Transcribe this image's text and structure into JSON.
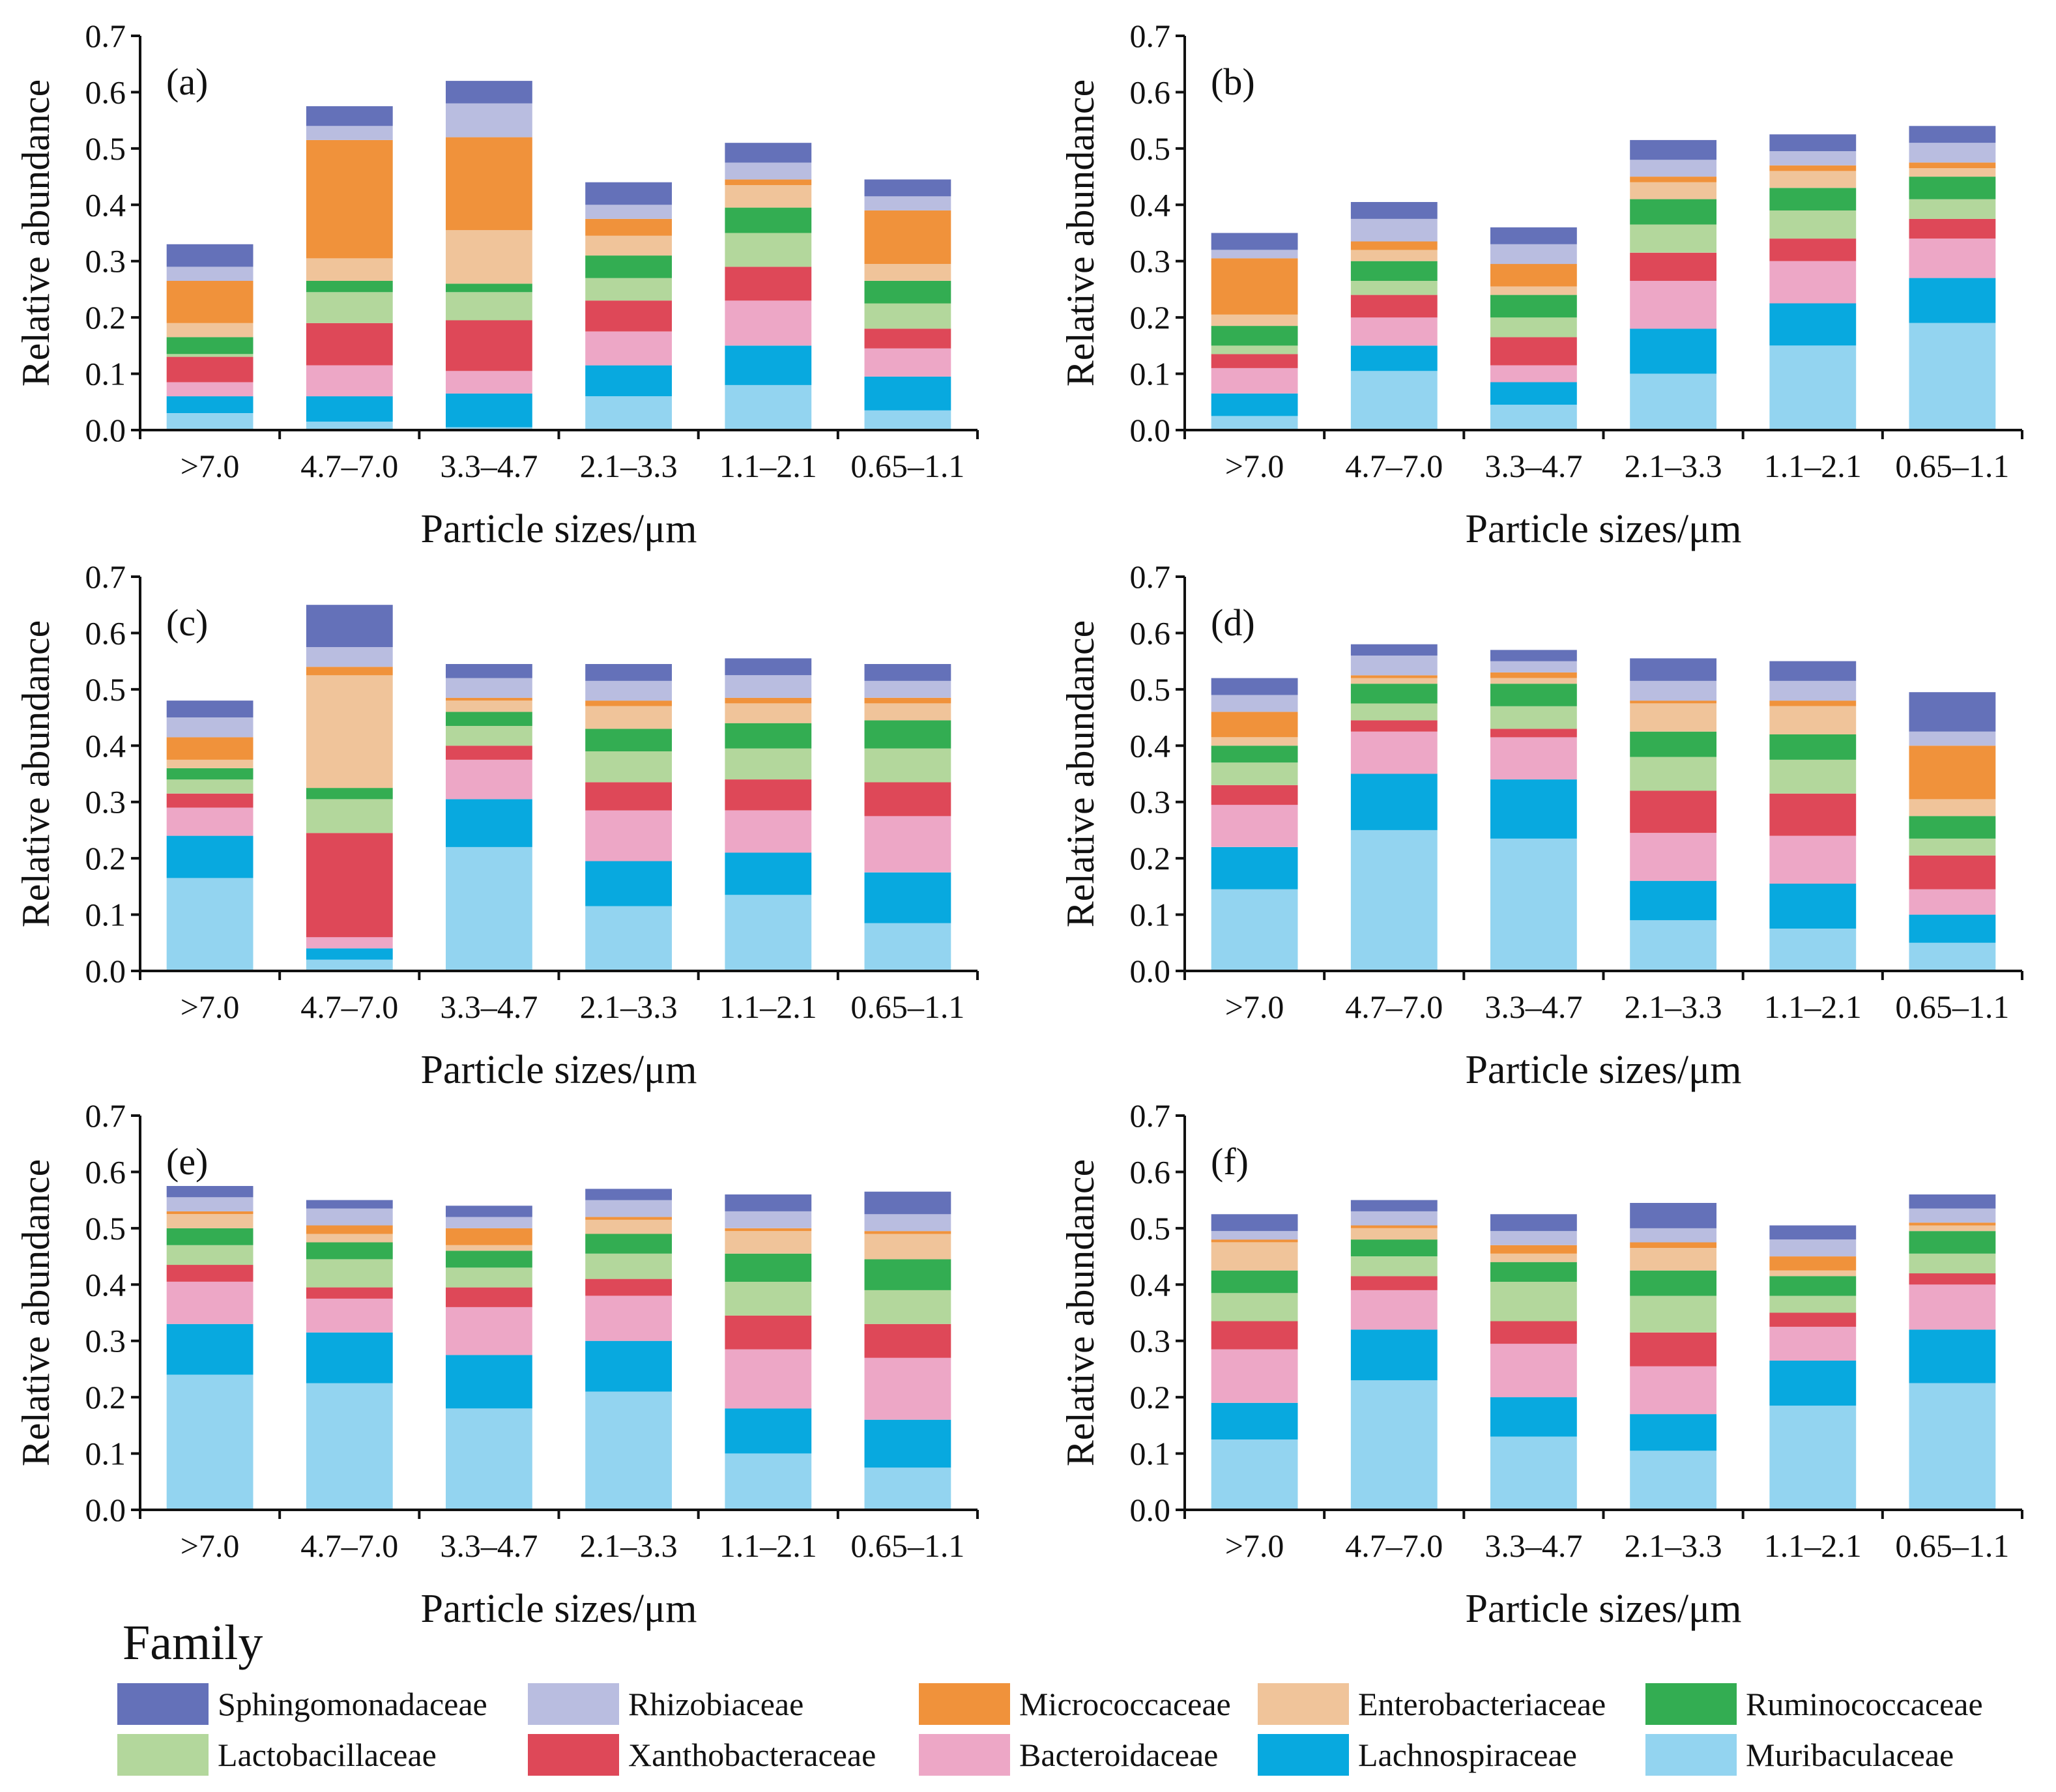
{
  "legend": {
    "title": "Family",
    "families": [
      {
        "name": "Sphingomonadaceae",
        "color": "#6471b9"
      },
      {
        "name": "Rhizobiaceae",
        "color": "#b9bde0"
      },
      {
        "name": "Micrococcaceae",
        "color": "#f0923b"
      },
      {
        "name": "Enterobacteriaceae",
        "color": "#f0c49a"
      },
      {
        "name": "Ruminococcaceae",
        "color": "#33ad52"
      },
      {
        "name": "Lactobacillaceae",
        "color": "#b3d79c"
      },
      {
        "name": "Xanthobacteraceae",
        "color": "#de4858"
      },
      {
        "name": "Bacteroidaceae",
        "color": "#eda7c6"
      },
      {
        "name": "Lachnospiraceae",
        "color": "#08a9df"
      },
      {
        "name": "Muribaculaceae",
        "color": "#93d4f0"
      }
    ]
  },
  "chart_data": [
    {
      "type": "bar",
      "stacked": true,
      "panel_label": "(a)",
      "categories": [
        ">7.0",
        "4.7–7.0",
        "3.3–4.7",
        "2.1–3.3",
        "1.1–2.1",
        "0.65–1.1"
      ],
      "xlabel": "Particle sizes/μm",
      "ylabel": "Relative abundance",
      "ylim": [
        0,
        0.7
      ],
      "yticks": [
        "0.0",
        "0.1",
        "0.2",
        "0.3",
        "0.4",
        "0.5",
        "0.6",
        "0.7"
      ],
      "series": [
        {
          "name": "Muribaculaceae",
          "values": [
            0.03,
            0.015,
            0.005,
            0.06,
            0.08,
            0.035
          ]
        },
        {
          "name": "Lachnospiraceae",
          "values": [
            0.03,
            0.045,
            0.06,
            0.055,
            0.07,
            0.06
          ]
        },
        {
          "name": "Bacteroidaceae",
          "values": [
            0.025,
            0.055,
            0.04,
            0.06,
            0.08,
            0.05
          ]
        },
        {
          "name": "Xanthobacteraceae",
          "values": [
            0.045,
            0.075,
            0.09,
            0.055,
            0.06,
            0.035
          ]
        },
        {
          "name": "Lactobacillaceae",
          "values": [
            0.005,
            0.055,
            0.05,
            0.04,
            0.06,
            0.045
          ]
        },
        {
          "name": "Ruminococcaceae",
          "values": [
            0.03,
            0.02,
            0.015,
            0.04,
            0.045,
            0.04
          ]
        },
        {
          "name": "Enterobacteriaceae",
          "values": [
            0.025,
            0.04,
            0.095,
            0.035,
            0.04,
            0.03
          ]
        },
        {
          "name": "Micrococcaceae",
          "values": [
            0.075,
            0.21,
            0.165,
            0.03,
            0.01,
            0.095
          ]
        },
        {
          "name": "Rhizobiaceae",
          "values": [
            0.025,
            0.025,
            0.06,
            0.025,
            0.03,
            0.025
          ]
        },
        {
          "name": "Sphingomonadaceae",
          "values": [
            0.04,
            0.035,
            0.04,
            0.04,
            0.035,
            0.03
          ]
        }
      ]
    },
    {
      "type": "bar",
      "stacked": true,
      "panel_label": "(b)",
      "categories": [
        ">7.0",
        "4.7–7.0",
        "3.3–4.7",
        "2.1–3.3",
        "1.1–2.1",
        "0.65–1.1"
      ],
      "xlabel": "Particle sizes/μm",
      "ylabel": "Relative abundance",
      "ylim": [
        0,
        0.7
      ],
      "yticks": [
        "0.0",
        "0.1",
        "0.2",
        "0.3",
        "0.4",
        "0.5",
        "0.6",
        "0.7"
      ],
      "series": [
        {
          "name": "Muribaculaceae",
          "values": [
            0.025,
            0.105,
            0.045,
            0.1,
            0.15,
            0.19
          ]
        },
        {
          "name": "Lachnospiraceae",
          "values": [
            0.04,
            0.045,
            0.04,
            0.08,
            0.075,
            0.08
          ]
        },
        {
          "name": "Bacteroidaceae",
          "values": [
            0.045,
            0.05,
            0.03,
            0.085,
            0.075,
            0.07
          ]
        },
        {
          "name": "Xanthobacteraceae",
          "values": [
            0.025,
            0.04,
            0.05,
            0.05,
            0.04,
            0.035
          ]
        },
        {
          "name": "Lactobacillaceae",
          "values": [
            0.015,
            0.025,
            0.035,
            0.05,
            0.05,
            0.035
          ]
        },
        {
          "name": "Ruminococcaceae",
          "values": [
            0.035,
            0.035,
            0.04,
            0.045,
            0.04,
            0.04
          ]
        },
        {
          "name": "Enterobacteriaceae",
          "values": [
            0.02,
            0.02,
            0.015,
            0.03,
            0.03,
            0.015
          ]
        },
        {
          "name": "Micrococcaceae",
          "values": [
            0.1,
            0.015,
            0.04,
            0.01,
            0.01,
            0.01
          ]
        },
        {
          "name": "Rhizobiaceae",
          "values": [
            0.015,
            0.04,
            0.035,
            0.03,
            0.025,
            0.035
          ]
        },
        {
          "name": "Sphingomonadaceae",
          "values": [
            0.03,
            0.03,
            0.03,
            0.035,
            0.03,
            0.03
          ]
        }
      ]
    },
    {
      "type": "bar",
      "stacked": true,
      "panel_label": "(c)",
      "categories": [
        ">7.0",
        "4.7–7.0",
        "3.3–4.7",
        "2.1–3.3",
        "1.1–2.1",
        "0.65–1.1"
      ],
      "xlabel": "Particle sizes/μm",
      "ylabel": "Relative abundance",
      "ylim": [
        0,
        0.7
      ],
      "yticks": [
        "0.0",
        "0.1",
        "0.2",
        "0.3",
        "0.4",
        "0.5",
        "0.6",
        "0.7"
      ],
      "series": [
        {
          "name": "Muribaculaceae",
          "values": [
            0.165,
            0.02,
            0.22,
            0.115,
            0.135,
            0.085
          ]
        },
        {
          "name": "Lachnospiraceae",
          "values": [
            0.075,
            0.02,
            0.085,
            0.08,
            0.075,
            0.09
          ]
        },
        {
          "name": "Bacteroidaceae",
          "values": [
            0.05,
            0.02,
            0.07,
            0.09,
            0.075,
            0.1
          ]
        },
        {
          "name": "Xanthobacteraceae",
          "values": [
            0.025,
            0.185,
            0.025,
            0.05,
            0.055,
            0.06
          ]
        },
        {
          "name": "Lactobacillaceae",
          "values": [
            0.025,
            0.06,
            0.035,
            0.055,
            0.055,
            0.06
          ]
        },
        {
          "name": "Ruminococcaceae",
          "values": [
            0.02,
            0.02,
            0.025,
            0.04,
            0.045,
            0.05
          ]
        },
        {
          "name": "Enterobacteriaceae",
          "values": [
            0.015,
            0.2,
            0.02,
            0.04,
            0.035,
            0.03
          ]
        },
        {
          "name": "Micrococcaceae",
          "values": [
            0.04,
            0.015,
            0.005,
            0.01,
            0.01,
            0.01
          ]
        },
        {
          "name": "Rhizobiaceae",
          "values": [
            0.035,
            0.035,
            0.035,
            0.035,
            0.04,
            0.03
          ]
        },
        {
          "name": "Sphingomonadaceae",
          "values": [
            0.03,
            0.075,
            0.025,
            0.03,
            0.03,
            0.03
          ]
        }
      ]
    },
    {
      "type": "bar",
      "stacked": true,
      "panel_label": "(d)",
      "categories": [
        ">7.0",
        "4.7–7.0",
        "3.3–4.7",
        "2.1–3.3",
        "1.1–2.1",
        "0.65–1.1"
      ],
      "xlabel": "Particle sizes/μm",
      "ylabel": "Relative abundance",
      "ylim": [
        0,
        0.7
      ],
      "yticks": [
        "0.0",
        "0.1",
        "0.2",
        "0.3",
        "0.4",
        "0.5",
        "0.6",
        "0.7"
      ],
      "series": [
        {
          "name": "Muribaculaceae",
          "values": [
            0.145,
            0.25,
            0.235,
            0.09,
            0.075,
            0.05
          ]
        },
        {
          "name": "Lachnospiraceae",
          "values": [
            0.075,
            0.1,
            0.105,
            0.07,
            0.08,
            0.05
          ]
        },
        {
          "name": "Bacteroidaceae",
          "values": [
            0.075,
            0.075,
            0.075,
            0.085,
            0.085,
            0.045
          ]
        },
        {
          "name": "Xanthobacteraceae",
          "values": [
            0.035,
            0.02,
            0.015,
            0.075,
            0.075,
            0.06
          ]
        },
        {
          "name": "Lactobacillaceae",
          "values": [
            0.04,
            0.03,
            0.04,
            0.06,
            0.06,
            0.03
          ]
        },
        {
          "name": "Ruminococcaceae",
          "values": [
            0.03,
            0.035,
            0.04,
            0.045,
            0.045,
            0.04
          ]
        },
        {
          "name": "Enterobacteriaceae",
          "values": [
            0.015,
            0.01,
            0.01,
            0.05,
            0.05,
            0.03
          ]
        },
        {
          "name": "Micrococcaceae",
          "values": [
            0.045,
            0.005,
            0.01,
            0.005,
            0.01,
            0.095
          ]
        },
        {
          "name": "Rhizobiaceae",
          "values": [
            0.03,
            0.035,
            0.02,
            0.035,
            0.035,
            0.025
          ]
        },
        {
          "name": "Sphingomonadaceae",
          "values": [
            0.03,
            0.02,
            0.02,
            0.04,
            0.035,
            0.07
          ]
        }
      ]
    },
    {
      "type": "bar",
      "stacked": true,
      "panel_label": "(e)",
      "categories": [
        ">7.0",
        "4.7–7.0",
        "3.3–4.7",
        "2.1–3.3",
        "1.1–2.1",
        "0.65–1.1"
      ],
      "xlabel": "Particle sizes/μm",
      "ylabel": "Relative abundance",
      "ylim": [
        0,
        0.7
      ],
      "yticks": [
        "0.0",
        "0.1",
        "0.2",
        "0.3",
        "0.4",
        "0.5",
        "0.6",
        "0.7"
      ],
      "series": [
        {
          "name": "Muribaculaceae",
          "values": [
            0.24,
            0.225,
            0.18,
            0.21,
            0.1,
            0.075
          ]
        },
        {
          "name": "Lachnospiraceae",
          "values": [
            0.09,
            0.09,
            0.095,
            0.09,
            0.08,
            0.085
          ]
        },
        {
          "name": "Bacteroidaceae",
          "values": [
            0.075,
            0.06,
            0.085,
            0.08,
            0.105,
            0.11
          ]
        },
        {
          "name": "Xanthobacteraceae",
          "values": [
            0.03,
            0.02,
            0.035,
            0.03,
            0.06,
            0.06
          ]
        },
        {
          "name": "Lactobacillaceae",
          "values": [
            0.035,
            0.05,
            0.035,
            0.045,
            0.06,
            0.06
          ]
        },
        {
          "name": "Ruminococcaceae",
          "values": [
            0.03,
            0.03,
            0.03,
            0.035,
            0.05,
            0.055
          ]
        },
        {
          "name": "Enterobacteriaceae",
          "values": [
            0.025,
            0.015,
            0.01,
            0.025,
            0.04,
            0.045
          ]
        },
        {
          "name": "Micrococcaceae",
          "values": [
            0.005,
            0.015,
            0.03,
            0.005,
            0.005,
            0.005
          ]
        },
        {
          "name": "Rhizobiaceae",
          "values": [
            0.025,
            0.03,
            0.02,
            0.03,
            0.03,
            0.03
          ]
        },
        {
          "name": "Sphingomonadaceae",
          "values": [
            0.02,
            0.015,
            0.02,
            0.02,
            0.03,
            0.04
          ]
        }
      ]
    },
    {
      "type": "bar",
      "stacked": true,
      "panel_label": "(f)",
      "categories": [
        ">7.0",
        "4.7–7.0",
        "3.3–4.7",
        "2.1–3.3",
        "1.1–2.1",
        "0.65–1.1"
      ],
      "xlabel": "Particle sizes/μm",
      "ylabel": "Relative abundance",
      "ylim": [
        0,
        0.7
      ],
      "yticks": [
        "0.0",
        "0.1",
        "0.2",
        "0.3",
        "0.4",
        "0.5",
        "0.6",
        "0.7"
      ],
      "series": [
        {
          "name": "Muribaculaceae",
          "values": [
            0.125,
            0.23,
            0.13,
            0.105,
            0.185,
            0.225
          ]
        },
        {
          "name": "Lachnospiraceae",
          "values": [
            0.065,
            0.09,
            0.07,
            0.065,
            0.08,
            0.095
          ]
        },
        {
          "name": "Bacteroidaceae",
          "values": [
            0.095,
            0.07,
            0.095,
            0.085,
            0.06,
            0.08
          ]
        },
        {
          "name": "Xanthobacteraceae",
          "values": [
            0.05,
            0.025,
            0.04,
            0.06,
            0.025,
            0.02
          ]
        },
        {
          "name": "Lactobacillaceae",
          "values": [
            0.05,
            0.035,
            0.07,
            0.065,
            0.03,
            0.035
          ]
        },
        {
          "name": "Ruminococcaceae",
          "values": [
            0.04,
            0.03,
            0.035,
            0.045,
            0.035,
            0.04
          ]
        },
        {
          "name": "Enterobacteriaceae",
          "values": [
            0.05,
            0.02,
            0.015,
            0.04,
            0.01,
            0.01
          ]
        },
        {
          "name": "Micrococcaceae",
          "values": [
            0.005,
            0.005,
            0.015,
            0.01,
            0.025,
            0.005
          ]
        },
        {
          "name": "Rhizobiaceae",
          "values": [
            0.015,
            0.025,
            0.025,
            0.025,
            0.03,
            0.025
          ]
        },
        {
          "name": "Sphingomonadaceae",
          "values": [
            0.03,
            0.02,
            0.03,
            0.045,
            0.025,
            0.025
          ]
        }
      ]
    }
  ]
}
